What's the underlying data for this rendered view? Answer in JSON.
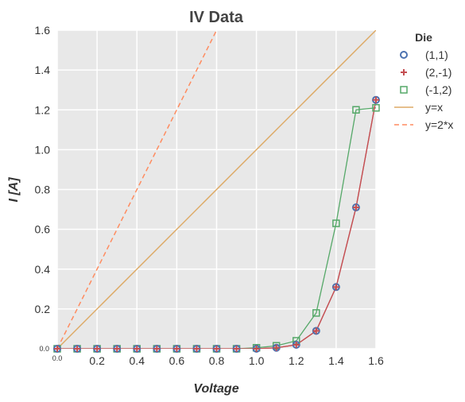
{
  "chart_data": {
    "type": "line",
    "title": "IV Data",
    "xlabel": "Voltage",
    "ylabel": "I [A]",
    "xlim": [
      0,
      1.6
    ],
    "ylim": [
      0,
      1.6
    ],
    "x_ticks": [
      "0.0",
      "0.2",
      "0.4",
      "0.6",
      "0.8",
      "1.0",
      "1.2",
      "1.4",
      "1.6"
    ],
    "y_ticks": [
      "0.0",
      "0.2",
      "0.4",
      "0.6",
      "0.8",
      "1.0",
      "1.2",
      "1.4",
      "1.6"
    ],
    "grid": true,
    "background": "#e8e8e8",
    "legend": {
      "title": "Die",
      "placement": "outside-right",
      "entries": [
        "(1,1)",
        "(2,-1)",
        "(-1,2)",
        "y=x",
        "y=2*x"
      ]
    },
    "x": [
      0.0,
      0.1,
      0.2,
      0.3,
      0.4,
      0.5,
      0.6,
      0.7,
      0.8,
      0.9,
      1.0,
      1.1,
      1.2,
      1.3,
      1.4,
      1.5,
      1.6
    ],
    "series": [
      {
        "name": "(1,1)",
        "marker": "circle",
        "color": "#4c72b0",
        "line_color": "#c44e52",
        "values": [
          0,
          0,
          0,
          0,
          0,
          0,
          0,
          0,
          0,
          0,
          0,
          0.005,
          0.02,
          0.09,
          0.31,
          0.71,
          1.25
        ]
      },
      {
        "name": "(2,-1)",
        "marker": "plus",
        "color": "#c44e52",
        "line_color": "#c44e52",
        "values": [
          0,
          0,
          0,
          0,
          0,
          0,
          0,
          0,
          0,
          0,
          0,
          0.005,
          0.02,
          0.09,
          0.31,
          0.71,
          1.25
        ]
      },
      {
        "name": "(-1,2)",
        "marker": "square",
        "color": "#55a868",
        "line_color": "#55a868",
        "values": [
          0,
          0,
          0,
          0,
          0,
          0,
          0,
          0,
          0,
          0,
          0.005,
          0.015,
          0.04,
          0.18,
          0.63,
          1.2,
          1.21
        ]
      },
      {
        "name": "y=x",
        "style": "solid",
        "color": "#ddaa66",
        "x": [
          0,
          1.6
        ],
        "values": [
          0,
          1.6
        ]
      },
      {
        "name": "y=2*x",
        "style": "dashed",
        "color": "#ff8c60",
        "x": [
          0,
          0.8
        ],
        "values": [
          0,
          1.6
        ]
      }
    ]
  }
}
